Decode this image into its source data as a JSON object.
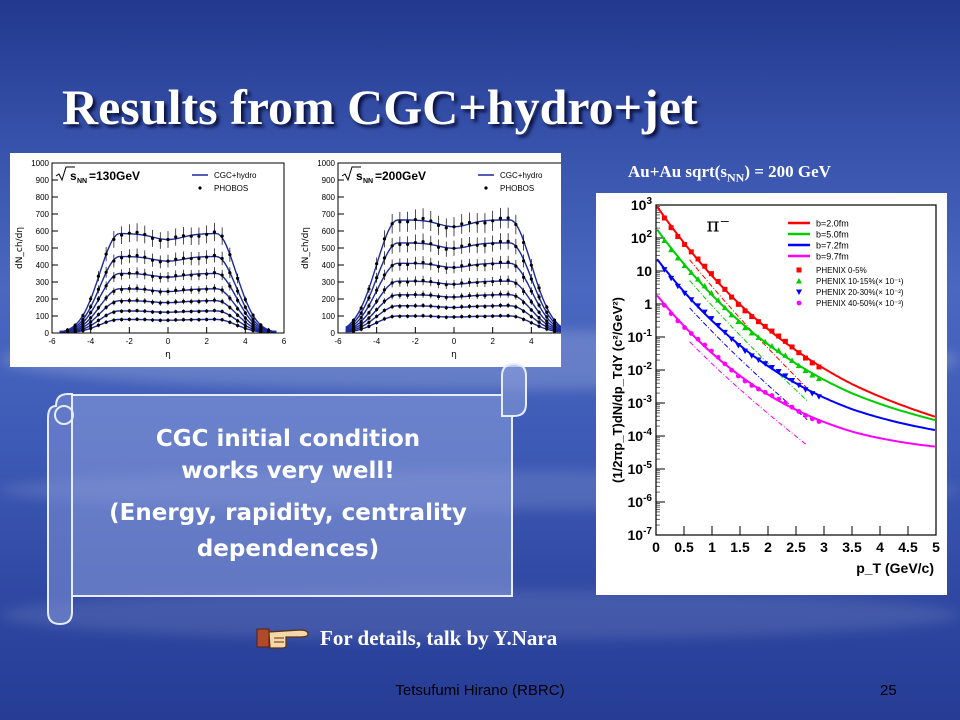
{
  "slide": {
    "title": "Results from CGC+hydro+jet",
    "right_heading_main": "Au+Au sqrt(s",
    "right_heading_sub": "NN",
    "right_heading_tail": ") = 200 GeV",
    "callout_lines": [
      "CGC initial condition",
      "works very well!",
      "(Energy, rapidity, centrality",
      "dependences)"
    ],
    "details": "For details, talk by Y.Nara",
    "footer": "Tetsufumi Hirano (RBRC)",
    "page": "25",
    "pointer_icon": "pointing-hand-icon"
  },
  "chart_data": [
    {
      "type": "scatter",
      "energy_label": "=130GeV",
      "ylabel": "dN_ch/dη",
      "xlabel": "η",
      "xlim": [
        -6,
        6
      ],
      "ylim": [
        0,
        1000
      ],
      "xticks": [
        "-6",
        "-4",
        "-2",
        "0",
        "2",
        "4",
        "6"
      ],
      "yticks": [
        "0",
        "100",
        "200",
        "300",
        "400",
        "500",
        "600",
        "700",
        "800",
        "900",
        "1000"
      ],
      "legend": [
        "CGC+hydro",
        "PHOBOS"
      ],
      "legend_position": "top-right",
      "series_peaks": [
        585,
        450,
        350,
        260,
        190,
        130,
        80
      ],
      "plateau_half_width": 2.5,
      "fall_width": 2.6
    },
    {
      "type": "scatter",
      "energy_label": "=200GeV",
      "ylabel": "dN_ch/dη",
      "xlabel": "η",
      "xlim": [
        -6,
        6
      ],
      "ylim": [
        0,
        1000
      ],
      "xticks": [
        "-6",
        "-4",
        "-2",
        "0",
        "2",
        "4",
        "6"
      ],
      "yticks": [
        "0",
        "100",
        "200",
        "300",
        "400",
        "500",
        "600",
        "700",
        "800",
        "900",
        "1000"
      ],
      "legend": [
        "CGC+hydro",
        "PHOBOS"
      ],
      "legend_position": "top-right",
      "series_peaks": [
        665,
        530,
        410,
        305,
        225,
        160,
        100
      ],
      "plateau_half_width": 2.9,
      "fall_width": 2.8
    },
    {
      "type": "line",
      "particle_label": "π⁻",
      "xlabel": "p_T (GeV/c)",
      "ylabel": "(1/2πp_T)dN/dp_TdY (c²/GeV²)",
      "xlim": [
        0,
        5
      ],
      "ylim_log10": [
        -7,
        3
      ],
      "log_y": true,
      "xticks": [
        "0",
        "0.5",
        "1",
        "1.5",
        "2",
        "2.5",
        "3",
        "3.5",
        "4",
        "4.5",
        "5"
      ],
      "yticks": [
        "10^-7",
        "10^-6",
        "10^-5",
        "10^-4",
        "10^-3",
        "10^-2",
        "10^-1",
        "1",
        "10",
        "10^2",
        "10^3"
      ],
      "legend_position": "top-right",
      "series": [
        {
          "name": "b=2.0fm",
          "color": "#ff0000",
          "log_y0": 3.0,
          "marker": "square",
          "marker_label": "PHENIX 0-5%"
        },
        {
          "name": "b=5.0fm",
          "color": "#00cc00",
          "log_y0": 2.3,
          "marker": "triangle-up",
          "marker_label": "PHENIX 10-15%(× 10⁻¹)"
        },
        {
          "name": "b=7.2fm",
          "color": "#0000ff",
          "log_y0": 1.4,
          "marker": "triangle-down",
          "marker_label": "PHENIX 20-30%(× 10⁻²)"
        },
        {
          "name": "b=9.7fm",
          "color": "#ff00ff",
          "log_y0": 0.3,
          "marker": "circle",
          "marker_label": "PHENIX 40-50%(× 10⁻³)"
        }
      ]
    }
  ]
}
